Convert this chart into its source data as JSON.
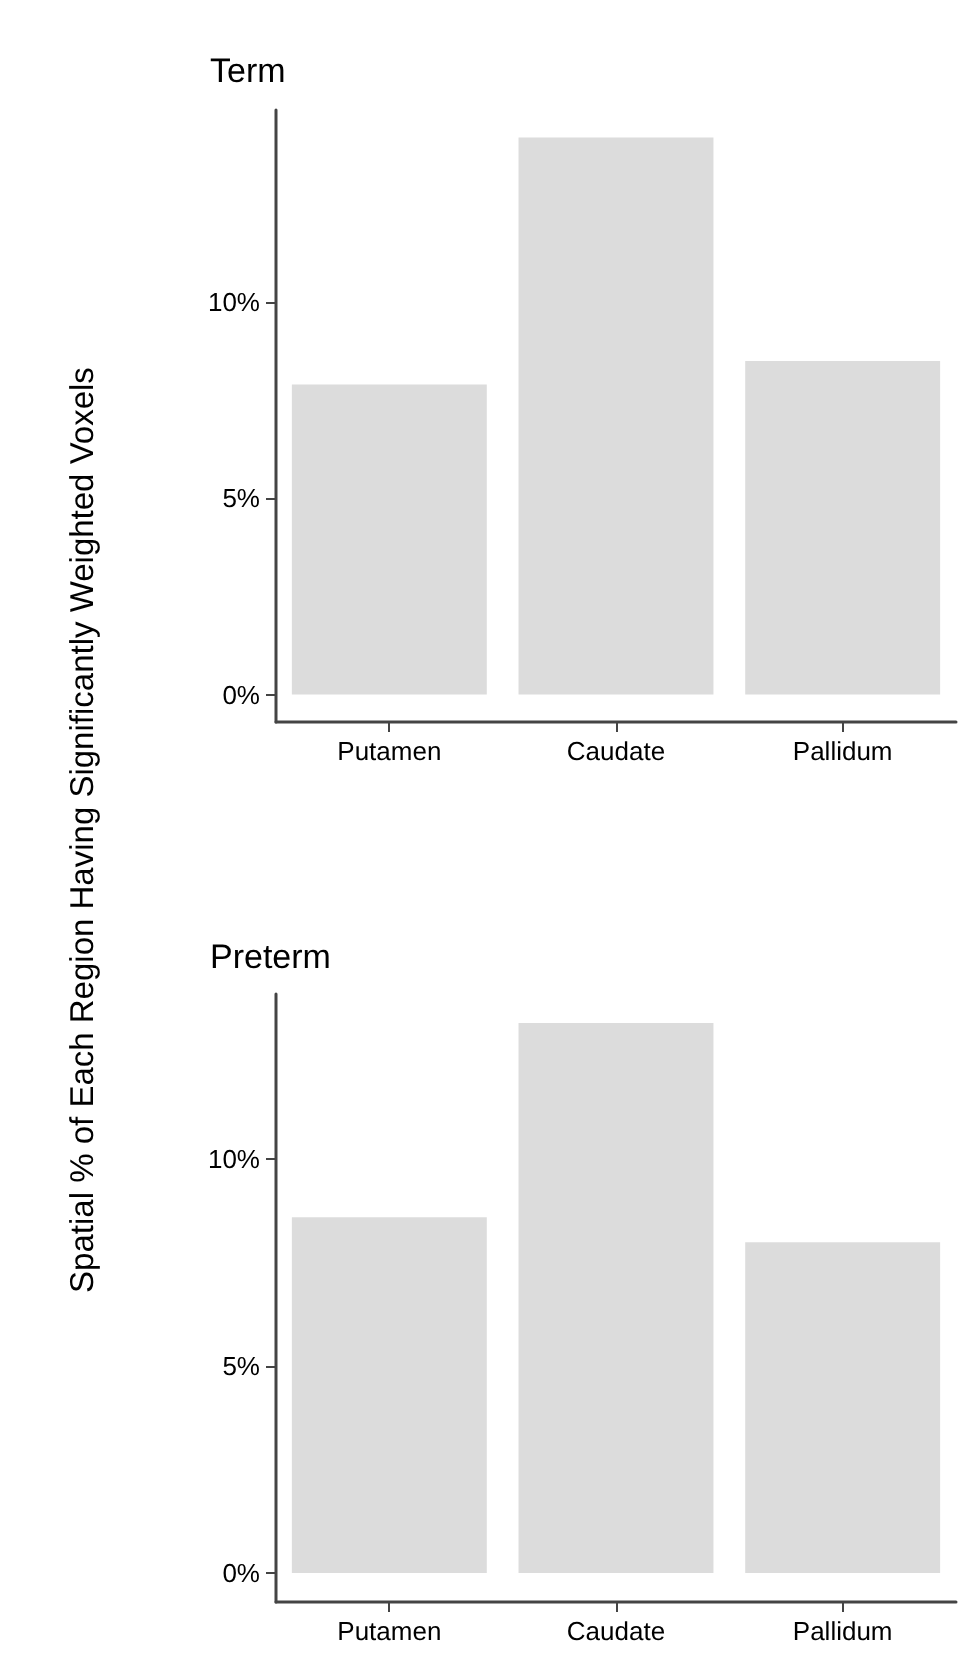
{
  "chart_data": [
    {
      "type": "bar",
      "title": "Term",
      "ylabel": "Spatial % of Each Region Having Significantly Weighted Voxels",
      "categories": [
        "Putamen",
        "Caudate",
        "Pallidum"
      ],
      "values": [
        7.9,
        14.2,
        8.5
      ],
      "color": "#dcdcdc",
      "ylim": [
        -0.7,
        14.9
      ],
      "yticks": [
        {
          "value": 0,
          "label": "0%"
        },
        {
          "value": 5,
          "label": "5%"
        },
        {
          "value": 10,
          "label": "10%"
        }
      ]
    },
    {
      "type": "bar",
      "title": "Preterm",
      "categories": [
        "Putamen",
        "Caudate",
        "Pallidum"
      ],
      "values": [
        8.6,
        13.3,
        8.0
      ],
      "color": "#dcdcdc",
      "ylim": [
        -0.7,
        14.0
      ],
      "yticks": [
        {
          "value": 0,
          "label": "0%"
        },
        {
          "value": 5,
          "label": "5%"
        },
        {
          "value": 10,
          "label": "10%"
        }
      ]
    }
  ]
}
